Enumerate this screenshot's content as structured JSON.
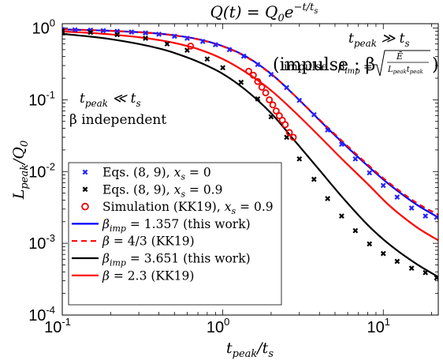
{
  "chart_data": {
    "type": "line",
    "title": "Q(t) = Q₀e⁻ᵗᐟᵗˢ",
    "title_parts": {
      "q": "Q(t) = Q",
      "q_sub": "0",
      "e": "e",
      "exp": "−t/t",
      "exp_sub": "s"
    },
    "xlabel": {
      "main": "t",
      "sub": "peak",
      "rest": "/t",
      "rest_sub": "s"
    },
    "ylabel": {
      "main": "L",
      "sub": "peak",
      "rest": "/Q",
      "rest_sub": "0"
    },
    "x_scale": "log",
    "y_scale": "log",
    "xlim": [
      0.1,
      22
    ],
    "ylim": [
      0.0001,
      1.15
    ],
    "x_ticks": [
      {
        "base": "10",
        "exp": "-1",
        "value": 0.1
      },
      {
        "base": "10",
        "exp": "0",
        "value": 1
      },
      {
        "base": "10",
        "exp": "1",
        "value": 10
      }
    ],
    "y_ticks": [
      {
        "base": "10",
        "exp": "0",
        "value": 1
      },
      {
        "base": "10",
        "exp": "-1",
        "value": 0.1
      },
      {
        "base": "10",
        "exp": "-2",
        "value": 0.01
      },
      {
        "base": "10",
        "exp": "-3",
        "value": 0.001
      },
      {
        "base": "10",
        "exp": "-4",
        "value": 0.0001
      }
    ],
    "annotations": {
      "left_line1": "t_peak ≪ t_s",
      "left_line1_parts": {
        "t": "t",
        "sub": "peak",
        "rel": " ≪ t",
        "sub2": "s"
      },
      "left_line2": "β independent",
      "right_line1_parts": {
        "t": "t",
        "sub": "peak",
        "rel": " ≫ t",
        "sub2": "s"
      },
      "right_line2_parts": {
        "open": "(impulse : β",
        "sub": "imp",
        "eq": " = ",
        "num": "Ē",
        "den": "L",
        "den_sub": "peak",
        "den_t": "t",
        "den_t_sub": "peak",
        "close": ")"
      }
    },
    "legend_position": "bottom-left",
    "series": [
      {
        "name": "Eqs. (8, 9), x_s = 0",
        "legend_parts": {
          "a": "Eqs. (8, 9), ",
          "x": "x",
          "sub": "s",
          "b": " = 0"
        },
        "style": "marker-x",
        "color": "#2222ff",
        "x": [
          0.1,
          0.12,
          0.15,
          0.18,
          0.22,
          0.27,
          0.33,
          0.4,
          0.5,
          0.6,
          0.75,
          0.9,
          1.1,
          1.35,
          1.65,
          2.0,
          2.5,
          3.0,
          3.7,
          4.5,
          5.5,
          6.7,
          8.2,
          10,
          12.2,
          15,
          18.3,
          21.5
        ],
        "y": [
          0.955,
          0.945,
          0.935,
          0.92,
          0.9,
          0.88,
          0.855,
          0.82,
          0.77,
          0.72,
          0.65,
          0.585,
          0.5,
          0.405,
          0.31,
          0.225,
          0.148,
          0.098,
          0.062,
          0.038,
          0.024,
          0.015,
          0.0096,
          0.0064,
          0.0044,
          0.0031,
          0.0024,
          0.0023
        ]
      },
      {
        "name": "Eqs. (8, 9), x_s = 0.9",
        "legend_parts": {
          "a": "Eqs. (8, 9), ",
          "x": "x",
          "sub": "s",
          "b": " = 0.9"
        },
        "style": "marker-x",
        "color": "#000000",
        "x": [
          0.1,
          0.15,
          0.22,
          0.33,
          0.45,
          0.6,
          0.8,
          1.0,
          1.3,
          1.65,
          2.0,
          2.5,
          3.0,
          3.7,
          4.5,
          5.5,
          6.7,
          8.2,
          10,
          12.2,
          15,
          18.3,
          21.5
        ],
        "y": [
          0.91,
          0.87,
          0.81,
          0.72,
          0.6,
          0.49,
          0.37,
          0.28,
          0.175,
          0.103,
          0.058,
          0.03,
          0.015,
          0.0078,
          0.0042,
          0.0024,
          0.0015,
          0.00098,
          0.00072,
          0.00056,
          0.00045,
          0.00039,
          0.00033
        ]
      },
      {
        "name": "Simulation (KK19), x_s = 0.9",
        "legend_parts": {
          "a": "Simulation (KK19), ",
          "x": "x",
          "sub": "s",
          "b": " = 0.9"
        },
        "style": "marker-circle",
        "color": "#ee0000",
        "x": [
          0.63,
          1.45,
          1.55,
          1.65,
          1.75,
          1.85,
          1.95,
          2.05,
          2.15,
          2.25,
          2.35,
          2.45,
          2.6,
          2.75
        ],
        "y": [
          0.56,
          0.25,
          0.22,
          0.18,
          0.15,
          0.125,
          0.1,
          0.085,
          0.07,
          0.06,
          0.052,
          0.045,
          0.035,
          0.03
        ]
      },
      {
        "name": "β_imp = 1.357 (this work)",
        "legend_parts": {
          "a": "β",
          "sub": "imp",
          "b": " = 1.357 (this work)"
        },
        "style": "solid",
        "color": "#0000ff",
        "x": [
          0.1,
          0.15,
          0.2,
          0.3,
          0.4,
          0.5,
          0.7,
          1.0,
          1.4,
          2.0,
          2.8,
          4.0,
          5.6,
          8.0,
          11,
          16,
          22
        ],
        "y": [
          0.955,
          0.935,
          0.915,
          0.875,
          0.835,
          0.79,
          0.7,
          0.56,
          0.4,
          0.23,
          0.115,
          0.052,
          0.025,
          0.012,
          0.0065,
          0.0035,
          0.0023
        ]
      },
      {
        "name": "β = 4/3 (KK19)",
        "legend_parts": {
          "a": "β",
          "sub": "",
          "b": " = 4/3 (KK19)"
        },
        "style": "dashed",
        "color": "#ff0000",
        "x": [
          0.1,
          0.15,
          0.2,
          0.3,
          0.4,
          0.5,
          0.7,
          1.0,
          1.4,
          2.0,
          2.8,
          4.0,
          5.6,
          8.0,
          11,
          16,
          22
        ],
        "y": [
          0.955,
          0.935,
          0.915,
          0.875,
          0.833,
          0.788,
          0.697,
          0.555,
          0.395,
          0.228,
          0.115,
          0.053,
          0.026,
          0.0125,
          0.0068,
          0.0037,
          0.0025
        ]
      },
      {
        "name": "β_imp = 3.651 (this work)",
        "legend_parts": {
          "a": "β",
          "sub": "imp",
          "b": " = 3.651 (this work)"
        },
        "style": "solid",
        "color": "#000000",
        "x": [
          0.1,
          0.15,
          0.2,
          0.3,
          0.4,
          0.5,
          0.7,
          1.0,
          1.4,
          2.0,
          2.8,
          4.0,
          5.6,
          8.0,
          11,
          16,
          22
        ],
        "y": [
          0.83,
          0.76,
          0.7,
          0.6,
          0.52,
          0.45,
          0.34,
          0.23,
          0.135,
          0.065,
          0.027,
          0.0105,
          0.0043,
          0.0018,
          0.00095,
          0.00052,
          0.00034
        ]
      },
      {
        "name": "β = 2.3 (KK19)",
        "legend_parts": {
          "a": "β",
          "sub": "",
          "b": " = 2.3 (KK19)"
        },
        "style": "solid",
        "color": "#ff0000",
        "x": [
          0.1,
          0.15,
          0.2,
          0.3,
          0.4,
          0.5,
          0.7,
          1.0,
          1.4,
          2.0,
          2.8,
          4.0,
          5.6,
          8.0,
          11,
          16,
          22
        ],
        "y": [
          0.895,
          0.855,
          0.815,
          0.745,
          0.68,
          0.62,
          0.51,
          0.37,
          0.24,
          0.135,
          0.068,
          0.031,
          0.0145,
          0.0067,
          0.0033,
          0.0017,
          0.0011
        ]
      }
    ]
  }
}
